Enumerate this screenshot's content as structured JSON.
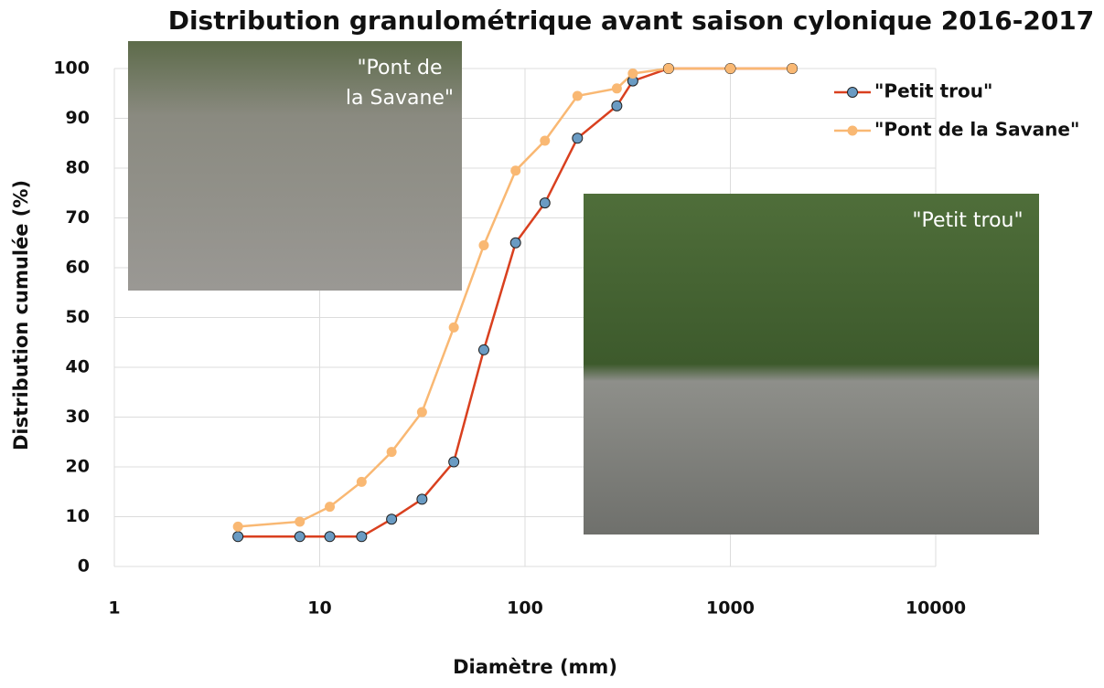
{
  "chart_data": {
    "type": "line",
    "title": "Distribution granulométrique avant saison cylonique 2016-2017",
    "x_label": "Diamètre (mm)",
    "y_label": "Distribution cumulée (%)",
    "x_log": true,
    "xlim": [
      1,
      10000
    ],
    "xticks": [
      1,
      10,
      100,
      1000,
      10000
    ],
    "ylim": [
      0,
      100
    ],
    "yticks": [
      0,
      10,
      20,
      30,
      40,
      50,
      60,
      70,
      80,
      90,
      100
    ],
    "grid": true,
    "legend": "top-right",
    "series": [
      {
        "name": "\"Petit trou\"",
        "color": "#d9401f",
        "marker_color": "#6a9bc3",
        "x": [
          4,
          8,
          11.2,
          16,
          22.4,
          31.5,
          45,
          63,
          90,
          125,
          180,
          280,
          335,
          500,
          1000,
          2000
        ],
        "values": [
          6,
          6,
          6,
          6,
          9.5,
          13.5,
          21,
          43.5,
          65,
          73,
          86,
          92.5,
          97.5,
          100,
          100,
          100
        ]
      },
      {
        "name": "\"Pont de la Savane\"",
        "color": "#f9b873",
        "marker_color": "#f9b873",
        "x": [
          4,
          8,
          11.2,
          16,
          22.4,
          31.5,
          45,
          63,
          90,
          125,
          180,
          280,
          335,
          500,
          1000,
          2000
        ],
        "values": [
          8,
          9,
          12,
          17,
          23,
          31,
          48,
          64.5,
          79.5,
          85.5,
          94.5,
          96,
          99,
          100,
          100,
          100
        ]
      }
    ],
    "photo_captions": [
      {
        "lines": [
          "\"Pont de",
          "la Savane\""
        ]
      },
      {
        "lines": [
          "\"Petit trou\""
        ]
      }
    ]
  }
}
